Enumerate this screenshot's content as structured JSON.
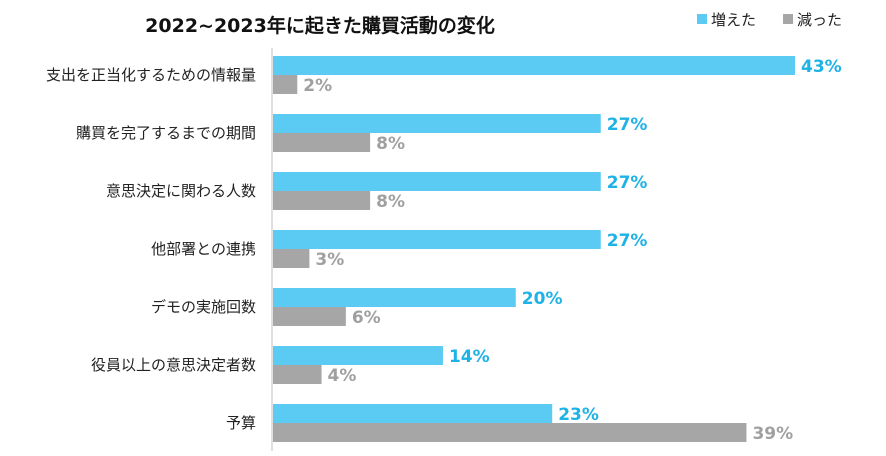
{
  "chart_data": {
    "type": "bar",
    "orientation": "horizontal",
    "title": "2022~2023年に起きた購買活動の変化",
    "categories": [
      "支出を正当化するための情報量",
      "購買を完了するまでの期間",
      "意思決定に関わる人数",
      "他部署との連携",
      "デモの実施回数",
      "役員以上の意思決定者数",
      "予算"
    ],
    "series": [
      {
        "name": "増えた",
        "color": "#5bcbf3",
        "label_color": "#1fb2e6",
        "values": [
          43,
          27,
          27,
          27,
          20,
          14,
          23
        ]
      },
      {
        "name": "減った",
        "color": "#a6a6a6",
        "label_color": "#a0a0a0",
        "values": [
          2,
          8,
          8,
          3,
          6,
          4,
          39
        ]
      }
    ],
    "value_suffix": "%",
    "xlim": [
      0,
      43
    ],
    "grid": false,
    "legend_position": "top-right"
  }
}
